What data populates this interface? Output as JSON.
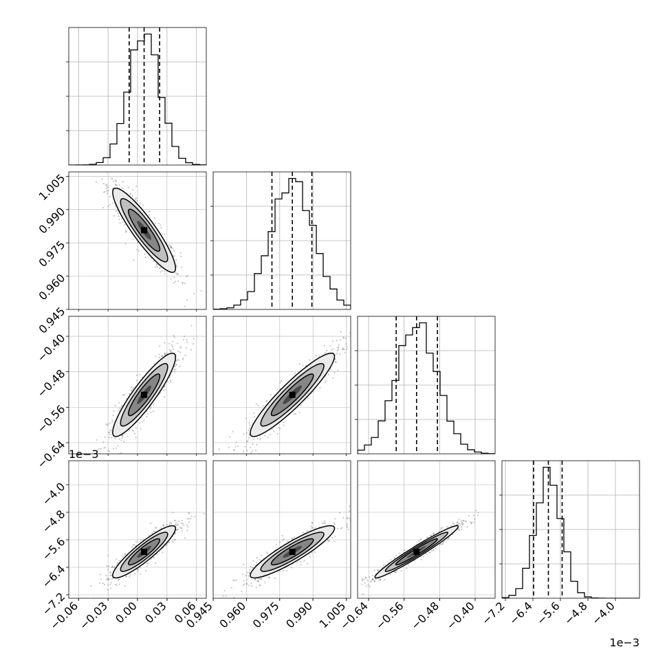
{
  "chart_data": {
    "type": "corner-plot",
    "ndim": 4,
    "parameters": [
      {
        "range": [
          -0.07,
          0.07
        ],
        "ticks": [
          -0.06,
          -0.03,
          0.0,
          0.03,
          0.06
        ],
        "tick_labels": [
          "−0.06",
          "−0.03",
          "0.00",
          "0.03",
          "0.06"
        ],
        "offset_text": "",
        "mean": 0.0067,
        "sd": 0.016,
        "quantiles": [
          -0.0085,
          0.0067,
          0.0225
        ]
      },
      {
        "range": [
          0.945,
          1.007
        ],
        "ticks": [
          0.945,
          0.96,
          0.975,
          0.99,
          1.005
        ],
        "tick_labels": [
          "0.945",
          "0.960",
          "0.975",
          "0.990",
          "1.005"
        ],
        "offset_text": "",
        "mean": 0.9807,
        "sd": 0.0095,
        "quantiles": [
          0.9715,
          0.9807,
          0.9895
        ]
      },
      {
        "range": [
          -0.665,
          -0.355
        ],
        "ticks": [
          -0.64,
          -0.56,
          -0.48,
          -0.4
        ],
        "tick_labels": [
          "−0.64",
          "−0.56",
          "−0.48",
          "−0.40"
        ],
        "offset_text": "",
        "mean": -0.532,
        "sd": 0.047,
        "quantiles": [
          -0.578,
          -0.532,
          -0.485
        ]
      },
      {
        "range": [
          -7.3,
          -3.3
        ],
        "ticks": [
          -7.2,
          -6.4,
          -5.6,
          -4.8,
          -4.0
        ],
        "tick_labels": [
          "−7.2",
          "−6.4",
          "−5.6",
          "−4.8",
          "−4.0"
        ],
        "offset_text": "1e−3",
        "mean": -5.95,
        "sd": 0.38,
        "quantiles": [
          -6.38,
          -5.95,
          -5.55
        ]
      }
    ],
    "correlations": [
      [
        1.0,
        -0.9,
        0.9,
        0.9
      ],
      [
        -0.9,
        1.0,
        0.92,
        0.9
      ],
      [
        0.9,
        0.92,
        1.0,
        0.97
      ],
      [
        0.9,
        0.9,
        0.97,
        1.0
      ]
    ],
    "contour_levels_sigma": [
      1.0,
      1.5,
      2.0
    ],
    "grid": true,
    "colors": {
      "points": "#444444",
      "contour": "#000000",
      "density": "#000000",
      "grid": "#b0b0b0"
    }
  }
}
